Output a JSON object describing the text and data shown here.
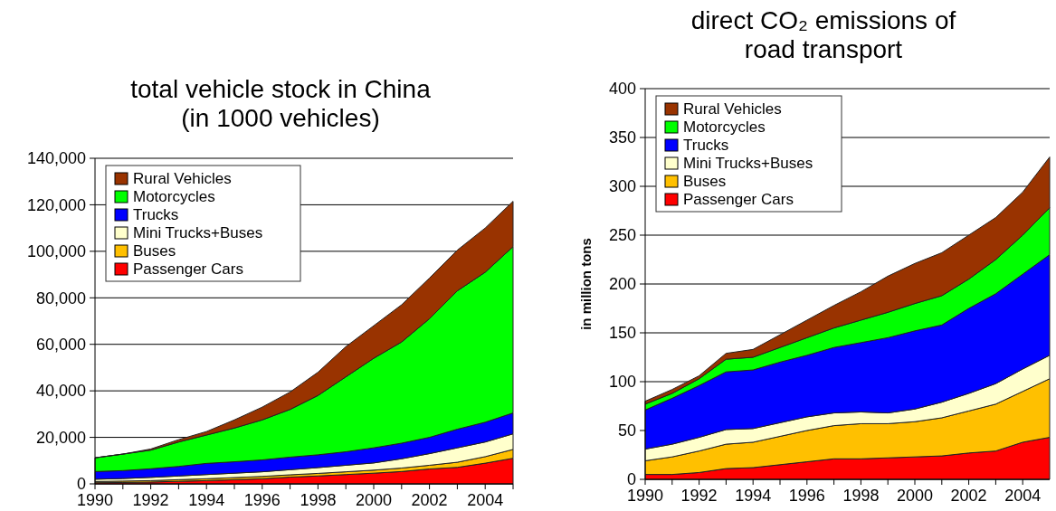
{
  "chart_data": [
    {
      "type": "area",
      "title": "total vehicle stock in China\n(in 1000 vehicles)",
      "stacked": true,
      "grid": "y",
      "legend": "top left",
      "x": [
        1990,
        1991,
        1992,
        1993,
        1994,
        1995,
        1996,
        1997,
        1998,
        1999,
        2000,
        2001,
        2002,
        2003,
        2004,
        2005
      ],
      "xlim": [
        1990,
        2005
      ],
      "xticks": [
        1990,
        {
          "value": 1991,
          "label": null
        },
        1992,
        {
          "value": 1993,
          "label": null
        },
        1994,
        {
          "value": 1995,
          "label": null
        },
        1996,
        {
          "value": 1997,
          "label": null
        },
        1998,
        {
          "value": 1999,
          "label": null
        },
        2000,
        {
          "value": 2001,
          "label": null
        },
        2002,
        {
          "value": 2003,
          "label": null
        },
        2004,
        {
          "value": 2005,
          "label": null
        }
      ],
      "ylim": [
        0,
        140000
      ],
      "yticks": [
        0,
        {
          "value": 20000,
          "label": "20,000"
        },
        {
          "value": 40000,
          "label": "40,000"
        },
        {
          "value": 60000,
          "label": "60,000"
        },
        {
          "value": 80000,
          "label": "80,000"
        },
        {
          "value": 100000,
          "label": "100,000"
        },
        {
          "value": 120000,
          "label": "120,000"
        },
        {
          "value": 140000,
          "label": "140,000"
        }
      ],
      "series": [
        {
          "name": "Passenger Cars",
          "color": "#ff0000",
          "values": [
            500,
            600,
            800,
            1100,
            1400,
            1800,
            2200,
            2900,
            3400,
            4000,
            4600,
            5300,
            6400,
            7100,
            8900,
            11000
          ]
        },
        {
          "name": "Buses",
          "color": "#ffc000",
          "values": [
            500,
            600,
            600,
            700,
            800,
            900,
            1000,
            1000,
            1100,
            1200,
            1300,
            1500,
            1600,
            2200,
            2800,
            3800
          ]
        },
        {
          "name": "Mini Trucks+Buses",
          "color": "#ffffcc",
          "values": [
            1000,
            1100,
            1400,
            1600,
            1800,
            1900,
            2000,
            2200,
            2500,
            2800,
            3100,
            4000,
            5000,
            6200,
            6300,
            6700
          ]
        },
        {
          "name": "Trucks",
          "color": "#0000ff",
          "values": [
            3300,
            3400,
            3700,
            4100,
            4800,
            4900,
            5100,
            5400,
            5500,
            5800,
            6500,
            6700,
            7000,
            8000,
            8500,
            9000
          ]
        },
        {
          "name": "Motorcycles",
          "color": "#00ff00",
          "values": [
            5900,
            7100,
            8000,
            10500,
            12200,
            14500,
            17200,
            20500,
            25500,
            32200,
            38500,
            43500,
            51000,
            59500,
            64500,
            71500
          ]
        },
        {
          "name": "Rural Vehicles",
          "color": "#993300",
          "values": [
            0,
            0,
            500,
            1000,
            1500,
            3500,
            5500,
            7500,
            10000,
            13000,
            14000,
            16000,
            17500,
            17500,
            19000,
            19500
          ]
        }
      ]
    },
    {
      "type": "area",
      "title": "direct CO₂ emissions of\nroad transport",
      "ylabel": "in million tons",
      "stacked": true,
      "grid": "y",
      "legend": "top left",
      "x": [
        1990,
        1991,
        1992,
        1993,
        1994,
        1995,
        1996,
        1997,
        1998,
        1999,
        2000,
        2001,
        2002,
        2003,
        2004,
        2005
      ],
      "xlim": [
        1990,
        2005
      ],
      "xticks": [
        1990,
        {
          "value": 1991,
          "label": null
        },
        1992,
        {
          "value": 1993,
          "label": null
        },
        1994,
        {
          "value": 1995,
          "label": null
        },
        1996,
        {
          "value": 1997,
          "label": null
        },
        1998,
        {
          "value": 1999,
          "label": null
        },
        2000,
        {
          "value": 2001,
          "label": null
        },
        2002,
        {
          "value": 2003,
          "label": null
        },
        2004
      ],
      "ylim": [
        0,
        400
      ],
      "yticks": [
        0,
        50,
        100,
        150,
        200,
        250,
        300,
        350,
        400
      ],
      "series": [
        {
          "name": "Passenger Cars",
          "color": "#ff0000",
          "values": [
            5,
            5,
            7,
            11,
            12,
            15,
            18,
            21,
            21,
            22,
            23,
            24,
            27,
            29,
            38,
            43
          ]
        },
        {
          "name": "Buses",
          "color": "#ffc000",
          "values": [
            14,
            18,
            22,
            25,
            26,
            29,
            32,
            34,
            36,
            35,
            36,
            39,
            43,
            48,
            52,
            60
          ]
        },
        {
          "name": "Mini Trucks+Buses",
          "color": "#ffffcc",
          "values": [
            12,
            13,
            14,
            15,
            14,
            14,
            14,
            13,
            12,
            11,
            13,
            16,
            18,
            21,
            23,
            24
          ]
        },
        {
          "name": "Trucks",
          "color": "#0000ff",
          "values": [
            40,
            47,
            53,
            59,
            60,
            62,
            63,
            67,
            71,
            77,
            80,
            79,
            87,
            92,
            97,
            103
          ]
        },
        {
          "name": "Motorcycles",
          "color": "#00ff00",
          "values": [
            6,
            5,
            7,
            13,
            13,
            15,
            18,
            20,
            23,
            26,
            28,
            30,
            30,
            35,
            40,
            48
          ]
        },
        {
          "name": "Rural Vehicles",
          "color": "#993300",
          "values": [
            3,
            4,
            3,
            6,
            8,
            13,
            18,
            23,
            29,
            37,
            41,
            44,
            45,
            43,
            44,
            52
          ]
        }
      ]
    }
  ]
}
